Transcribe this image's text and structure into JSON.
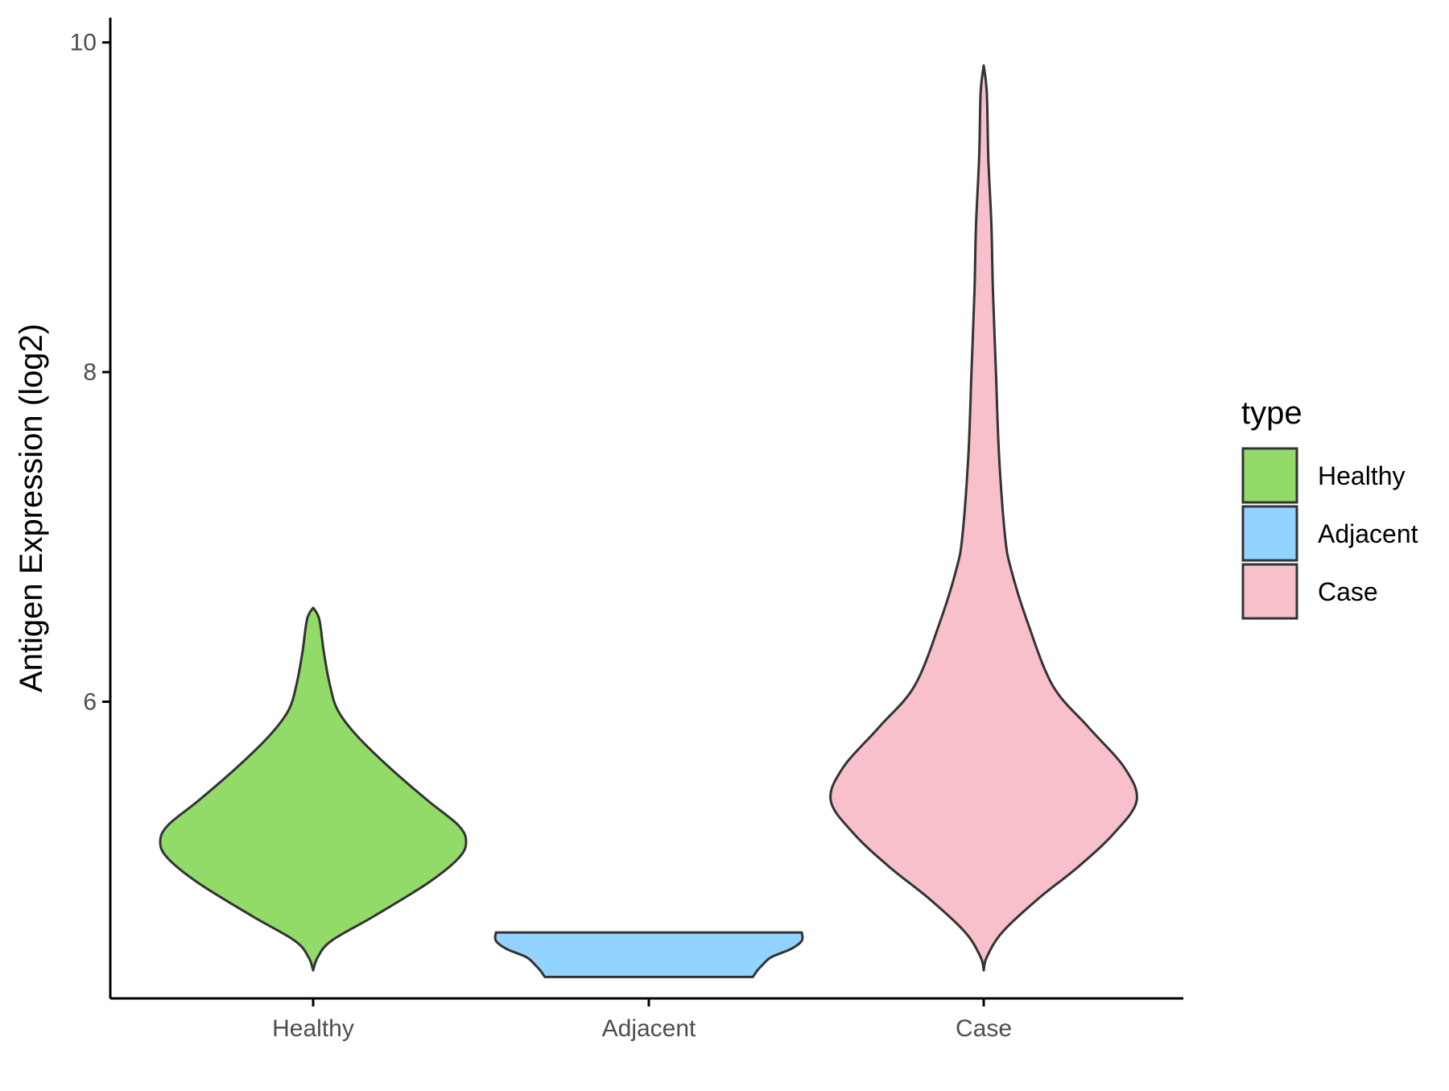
{
  "chart_data": {
    "type": "violin",
    "title": "",
    "xlabel": "",
    "ylabel": "Antigen Expression (log2)",
    "categories": [
      "Healthy",
      "Adjacent",
      "Case"
    ],
    "ylim": [
      4.2,
      10.15
    ],
    "yticks": [
      6,
      8,
      10
    ],
    "grid": false,
    "legend": {
      "title": "type",
      "position": "right",
      "entries": [
        "Healthy",
        "Adjacent",
        "Case"
      ]
    },
    "series": [
      {
        "category": "Healthy",
        "color": "#93DB69",
        "profile": [
          [
            4.37,
            0.0
          ],
          [
            4.45,
            0.03
          ],
          [
            4.55,
            0.12
          ],
          [
            4.7,
            0.4
          ],
          [
            4.9,
            0.75
          ],
          [
            5.05,
            0.95
          ],
          [
            5.15,
            1.0
          ],
          [
            5.25,
            0.95
          ],
          [
            5.4,
            0.75
          ],
          [
            5.6,
            0.5
          ],
          [
            5.8,
            0.28
          ],
          [
            5.95,
            0.16
          ],
          [
            6.1,
            0.11
          ],
          [
            6.3,
            0.07
          ],
          [
            6.5,
            0.04
          ],
          [
            6.57,
            0.0
          ]
        ]
      },
      {
        "category": "Adjacent",
        "color": "#92D4FF",
        "profile": [
          [
            4.33,
            0.68
          ],
          [
            4.37,
            0.71
          ],
          [
            4.4,
            0.74
          ],
          [
            4.45,
            0.8
          ],
          [
            4.5,
            0.93
          ],
          [
            4.55,
            1.0
          ],
          [
            4.6,
            1.0
          ]
        ]
      },
      {
        "category": "Case",
        "color": "#F7C0CB",
        "profile": [
          [
            4.37,
            0.0
          ],
          [
            4.45,
            0.02
          ],
          [
            4.6,
            0.12
          ],
          [
            4.8,
            0.35
          ],
          [
            5.0,
            0.62
          ],
          [
            5.2,
            0.85
          ],
          [
            5.4,
            1.0
          ],
          [
            5.6,
            0.92
          ],
          [
            5.85,
            0.68
          ],
          [
            6.1,
            0.45
          ],
          [
            6.5,
            0.28
          ],
          [
            6.8,
            0.18
          ],
          [
            7.0,
            0.14
          ],
          [
            7.5,
            0.1
          ],
          [
            8.0,
            0.08
          ],
          [
            8.5,
            0.06
          ],
          [
            8.9,
            0.05
          ],
          [
            9.3,
            0.03
          ],
          [
            9.7,
            0.02
          ],
          [
            9.86,
            0.0
          ]
        ]
      }
    ]
  }
}
